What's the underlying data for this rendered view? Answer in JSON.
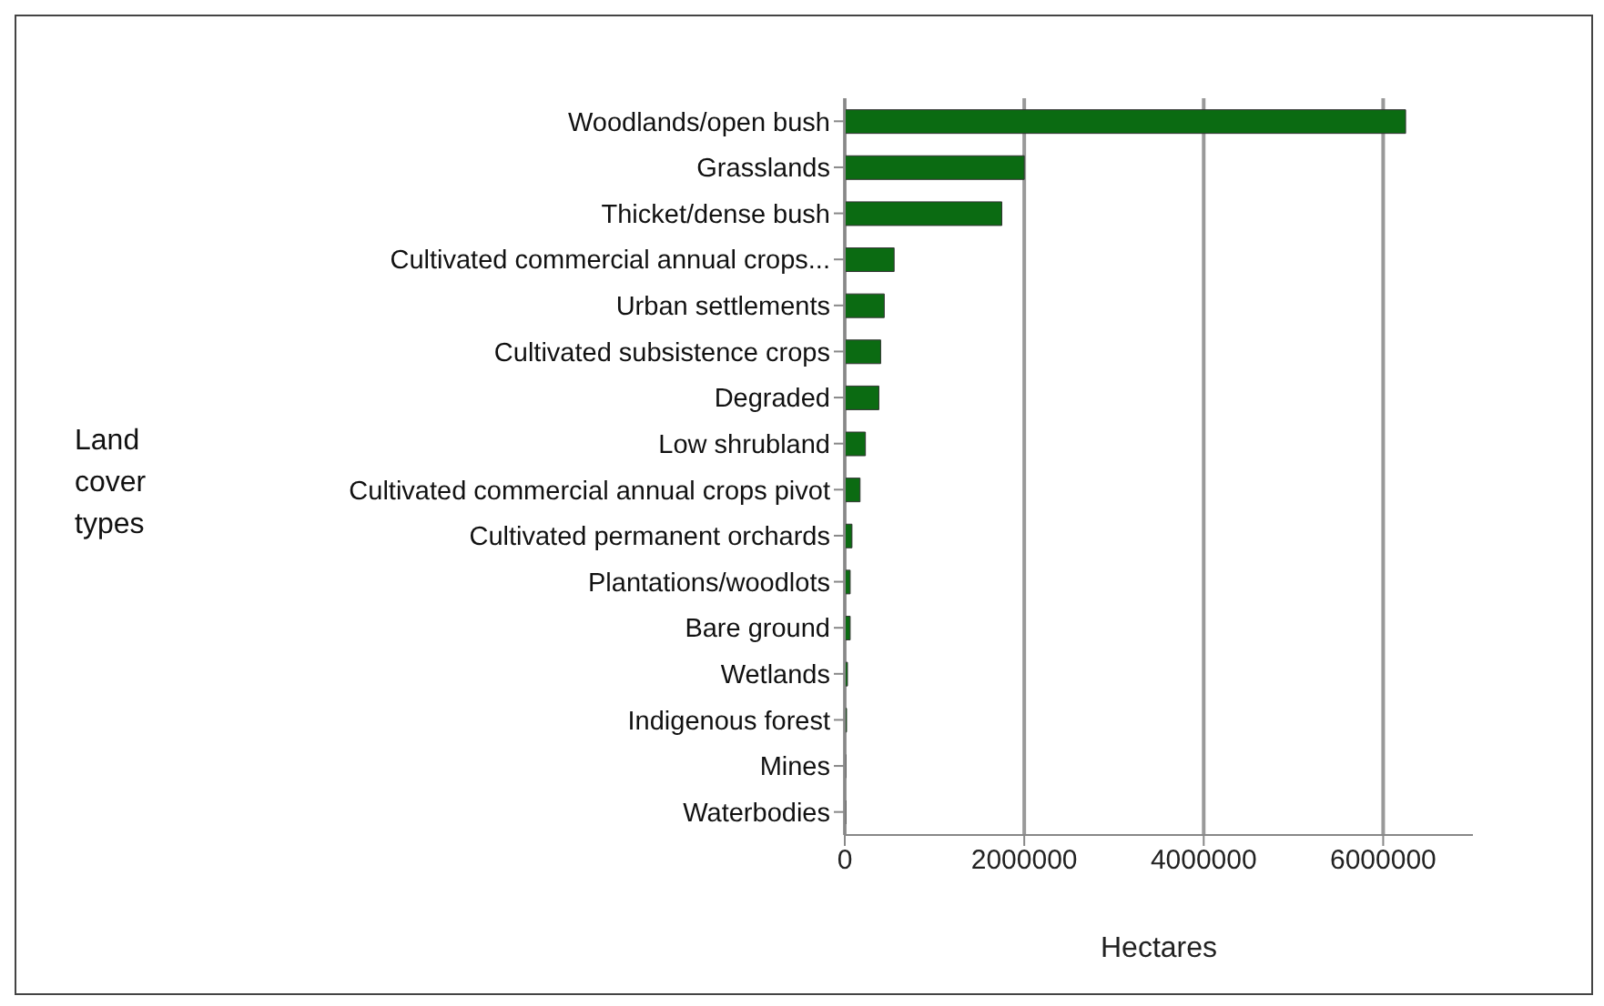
{
  "chart_data": {
    "type": "bar",
    "orientation": "horizontal",
    "xlabel": "Hectares",
    "annotations": [
      "Land cover types"
    ],
    "categories": [
      "Woodlands/open bush",
      "Grasslands",
      "Thicket/dense bush",
      "Cultivated commercial annual crops...",
      "Urban settlements",
      "Cultivated subsistence crops",
      "Degraded",
      "Low shrubland",
      "Cultivated commercial annual crops pivot",
      "Cultivated permanent orchards",
      "Plantations/woodlots",
      "Bare ground",
      "Wetlands",
      "Indigenous forest",
      "Mines",
      "Waterbodies"
    ],
    "values": [
      6250000,
      2000000,
      1750000,
      550000,
      440000,
      400000,
      380000,
      230000,
      170000,
      80000,
      60000,
      60000,
      30000,
      20000,
      10000,
      10000
    ],
    "color": "#0b6b12",
    "xlim": [
      0,
      7000000
    ],
    "xticks": [
      0,
      2000000,
      4000000,
      6000000
    ],
    "grid": "x"
  }
}
